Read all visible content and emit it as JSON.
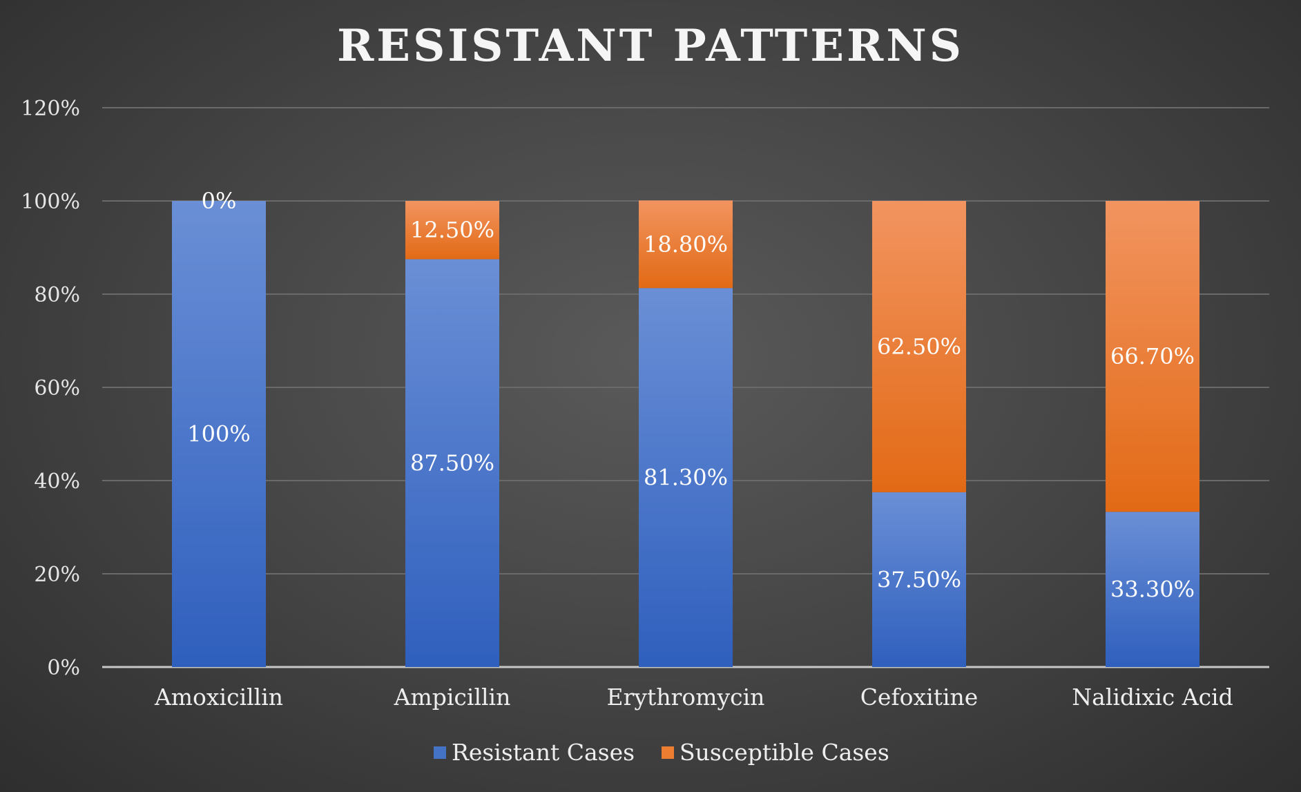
{
  "chart_data": {
    "type": "bar",
    "stacked": true,
    "title": "RESISTANT PATTERNS",
    "categories": [
      "Amoxicillin",
      "Ampicillin",
      "Erythromycin",
      "Cefoxitine",
      "Nalidixic Acid"
    ],
    "series": [
      {
        "name": "Resistant Cases",
        "values": [
          100,
          87.5,
          81.3,
          37.5,
          33.3
        ],
        "labels": [
          "100%",
          "87.50%",
          "81.30%",
          "37.50%",
          "33.30%"
        ],
        "color": "#4472c4"
      },
      {
        "name": "Susceptible Cases",
        "values": [
          0,
          12.5,
          18.8,
          62.5,
          66.7
        ],
        "labels": [
          "0%",
          "12.50%",
          "18.80%",
          "62.50%",
          "66.70%"
        ],
        "color": "#ed7d31"
      }
    ],
    "yticks": [
      "0%",
      "20%",
      "40%",
      "60%",
      "80%",
      "100%",
      "120%"
    ],
    "ylim": [
      0,
      120
    ],
    "ytick_step": 20,
    "grid": true,
    "legend_position": "bottom"
  }
}
